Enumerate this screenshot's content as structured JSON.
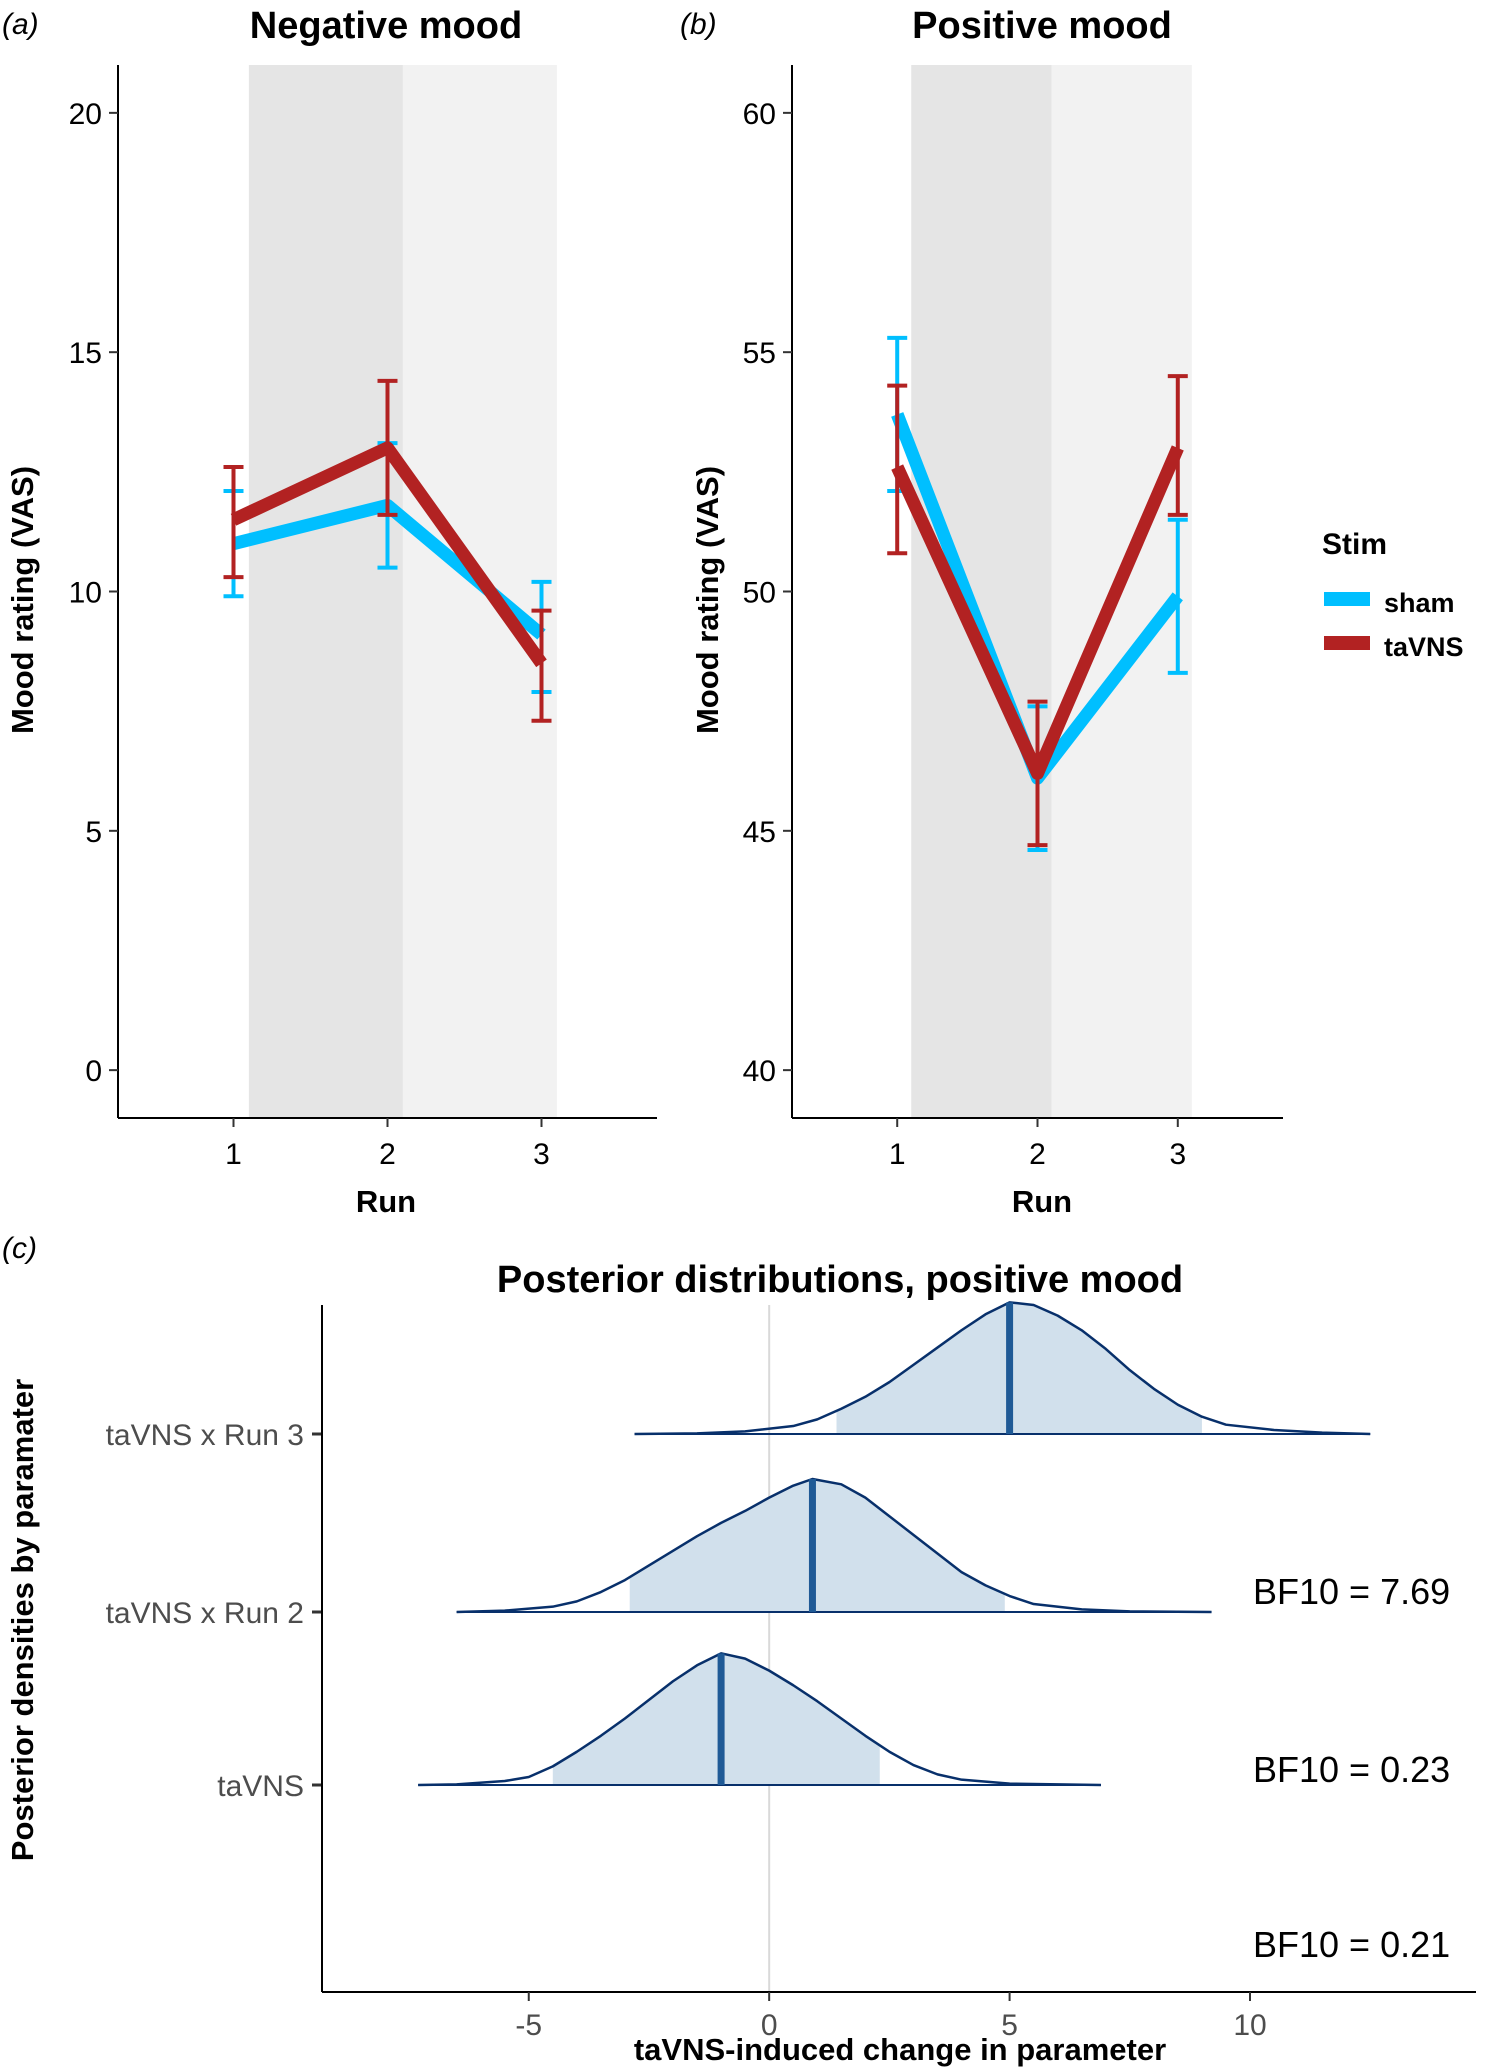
{
  "colors": {
    "sham": "#00bfff",
    "taVNS": "#b22222",
    "band_dark": "#e5e5e5",
    "band_light": "#f2f2f2",
    "ridge_fill": "#d1e0ec",
    "ridge_line": "#08306b",
    "ridge_median": "#1f5a96",
    "zero_line": "#d9d9d9"
  },
  "legend": {
    "title": "Stim",
    "items": [
      "sham",
      "taVNS"
    ]
  },
  "chart_data": [
    {
      "panel": "(a)",
      "type": "line",
      "title": "Negative mood",
      "xlabel": "Run",
      "ylabel": "Mood rating (VAS)",
      "x": [
        1,
        2,
        3
      ],
      "xlim": [
        0.25,
        3.75
      ],
      "ylim": [
        -1,
        21
      ],
      "yticks": [
        0,
        5,
        10,
        15,
        20
      ],
      "xticks": [
        1,
        2,
        3
      ],
      "bands": [
        {
          "from": 1.1,
          "to": 2.1,
          "shade": "dark"
        },
        {
          "from": 2.1,
          "to": 3.1,
          "shade": "light"
        }
      ],
      "series": [
        {
          "name": "sham",
          "values": [
            11.0,
            11.8,
            9.1
          ],
          "lower": [
            9.9,
            10.5,
            7.9
          ],
          "upper": [
            12.1,
            13.1,
            10.2
          ]
        },
        {
          "name": "taVNS",
          "values": [
            11.5,
            13.0,
            8.5
          ],
          "lower": [
            10.3,
            11.6,
            7.3
          ],
          "upper": [
            12.6,
            14.4,
            9.6
          ]
        }
      ]
    },
    {
      "panel": "(b)",
      "type": "line",
      "title": "Positive mood",
      "xlabel": "Run",
      "ylabel": "Mood rating (VAS)",
      "x": [
        1,
        2,
        3
      ],
      "xlim": [
        0.25,
        3.75
      ],
      "ylim": [
        39,
        61
      ],
      "yticks": [
        40,
        45,
        50,
        55,
        60
      ],
      "xticks": [
        1,
        2,
        3
      ],
      "bands": [
        {
          "from": 1.1,
          "to": 2.1,
          "shade": "dark"
        },
        {
          "from": 2.1,
          "to": 3.1,
          "shade": "light"
        }
      ],
      "series": [
        {
          "name": "sham",
          "values": [
            53.7,
            46.1,
            49.9
          ],
          "lower": [
            52.1,
            44.6,
            48.3
          ],
          "upper": [
            55.3,
            47.6,
            51.5
          ]
        },
        {
          "name": "taVNS",
          "values": [
            52.6,
            46.2,
            53.0
          ],
          "lower": [
            50.8,
            44.7,
            51.6
          ],
          "upper": [
            54.3,
            47.7,
            54.5
          ]
        }
      ]
    },
    {
      "panel": "(c)",
      "type": "area",
      "title": "Posterior distributions, positive mood",
      "xlabel": "taVNS-induced change in parameter",
      "ylabel": "Posterior densities by paramater",
      "xlim": [
        -9.3,
        14.7
      ],
      "xticks": [
        -5,
        0,
        5,
        10
      ],
      "categories": [
        "taVNS",
        "taVNS x Run 2",
        "taVNS x Run 3"
      ],
      "ridges": [
        {
          "name": "taVNS",
          "median": -1.0,
          "interval": [
            -4.5,
            2.3
          ],
          "range": [
            -7.3,
            6.9
          ],
          "peak_height": 1.0,
          "density_points": [
            [
              -7.3,
              0
            ],
            [
              -6.5,
              0.005
            ],
            [
              -5.5,
              0.03
            ],
            [
              -5.0,
              0.06
            ],
            [
              -4.5,
              0.14
            ],
            [
              -4.0,
              0.25
            ],
            [
              -3.5,
              0.37
            ],
            [
              -3.0,
              0.5
            ],
            [
              -2.5,
              0.64
            ],
            [
              -2.0,
              0.78
            ],
            [
              -1.5,
              0.9
            ],
            [
              -1.0,
              0.99
            ],
            [
              -0.5,
              0.95
            ],
            [
              0,
              0.86
            ],
            [
              0.5,
              0.75
            ],
            [
              1.0,
              0.63
            ],
            [
              1.5,
              0.5
            ],
            [
              2.0,
              0.37
            ],
            [
              2.5,
              0.25
            ],
            [
              3.0,
              0.15
            ],
            [
              3.5,
              0.08
            ],
            [
              4.0,
              0.04
            ],
            [
              5.0,
              0.01
            ],
            [
              6.9,
              0
            ]
          ],
          "bf_label": "BF10 = 0.21"
        },
        {
          "name": "taVNS x Run 2",
          "median": 0.9,
          "interval": [
            -2.9,
            4.9
          ],
          "range": [
            -6.5,
            9.2
          ],
          "peak_height": 1.0,
          "density_points": [
            [
              -6.5,
              0
            ],
            [
              -5.5,
              0.01
            ],
            [
              -4.5,
              0.04
            ],
            [
              -4.0,
              0.08
            ],
            [
              -3.5,
              0.15
            ],
            [
              -3.0,
              0.24
            ],
            [
              -2.5,
              0.35
            ],
            [
              -2.0,
              0.46
            ],
            [
              -1.5,
              0.57
            ],
            [
              -1.0,
              0.67
            ],
            [
              -0.5,
              0.76
            ],
            [
              0,
              0.86
            ],
            [
              0.5,
              0.95
            ],
            [
              0.9,
              1.0
            ],
            [
              1.5,
              0.96
            ],
            [
              2.0,
              0.86
            ],
            [
              2.5,
              0.72
            ],
            [
              3.0,
              0.58
            ],
            [
              3.5,
              0.44
            ],
            [
              4.0,
              0.3
            ],
            [
              4.5,
              0.2
            ],
            [
              5.0,
              0.12
            ],
            [
              5.5,
              0.06
            ],
            [
              6.5,
              0.02
            ],
            [
              7.5,
              0.005
            ],
            [
              9.2,
              0
            ]
          ],
          "bf_label": "BF10 = 0.23"
        },
        {
          "name": "taVNS x Run 3",
          "median": 5.0,
          "interval": [
            1.4,
            9.0
          ],
          "range": [
            -2.8,
            12.5
          ],
          "peak_height": 1.0,
          "density_points": [
            [
              -2.8,
              0
            ],
            [
              -1.5,
              0.005
            ],
            [
              -0.5,
              0.02
            ],
            [
              0.5,
              0.06
            ],
            [
              1.0,
              0.11
            ],
            [
              1.5,
              0.19
            ],
            [
              2.0,
              0.28
            ],
            [
              2.5,
              0.39
            ],
            [
              3.0,
              0.52
            ],
            [
              3.5,
              0.65
            ],
            [
              4.0,
              0.78
            ],
            [
              4.5,
              0.9
            ],
            [
              5.0,
              0.99
            ],
            [
              5.5,
              0.97
            ],
            [
              6.0,
              0.89
            ],
            [
              6.5,
              0.78
            ],
            [
              7.0,
              0.64
            ],
            [
              7.5,
              0.48
            ],
            [
              8.0,
              0.34
            ],
            [
              8.5,
              0.22
            ],
            [
              9.0,
              0.13
            ],
            [
              9.5,
              0.07
            ],
            [
              10.5,
              0.03
            ],
            [
              11.5,
              0.01
            ],
            [
              12.5,
              0
            ]
          ],
          "bf_label": "BF10 = 7.69"
        }
      ]
    }
  ]
}
